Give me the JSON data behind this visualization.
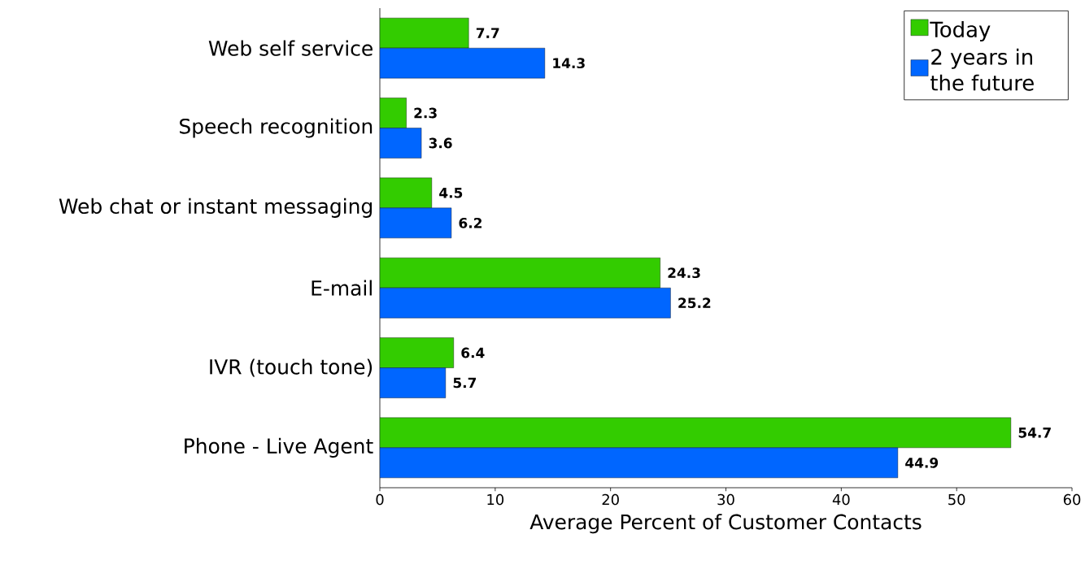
{
  "chart_data": {
    "type": "bar",
    "orientation": "horizontal",
    "xlabel": "Average Percent of Customer Contacts",
    "categories": [
      "Web self service",
      "Speech recognition",
      "Web chat or instant messaging",
      "E-mail",
      "IVR (touch tone)",
      "Phone - Live Agent"
    ],
    "series": [
      {
        "name": "Today",
        "color": "#33cc00",
        "values": [
          7.7,
          2.3,
          4.5,
          24.3,
          6.4,
          54.7
        ]
      },
      {
        "name": "2 years in the future",
        "color": "#0066ff",
        "values": [
          14.3,
          3.6,
          6.2,
          25.2,
          5.7,
          44.9
        ]
      }
    ],
    "xlim": [
      0,
      60
    ],
    "xticks": [
      0,
      10,
      20,
      30,
      40,
      50,
      60
    ],
    "data_labels": true,
    "legend": "top right",
    "grid": false
  }
}
